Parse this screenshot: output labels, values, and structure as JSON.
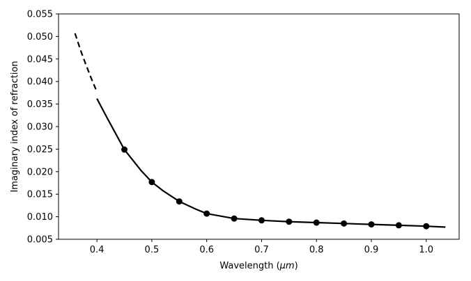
{
  "chart_data": {
    "type": "line",
    "title": "",
    "xlabel": "Wavelength (",
    "xlabel_unit": "μm",
    "xlabel_close": ")",
    "ylabel": "Imaginary index of refraction",
    "xlim": [
      0.33,
      1.06
    ],
    "ylim": [
      0.005,
      0.055
    ],
    "grid": false,
    "x_ticks": [
      0.4,
      0.5,
      0.6,
      0.7,
      0.8,
      0.9,
      1.0
    ],
    "x_tick_labels": [
      "0.4",
      "0.5",
      "0.6",
      "0.7",
      "0.8",
      "0.9",
      "1.0"
    ],
    "y_ticks": [
      0.005,
      0.01,
      0.015,
      0.02,
      0.025,
      0.03,
      0.035,
      0.04,
      0.045,
      0.05,
      0.055
    ],
    "y_tick_labels": [
      "0.005",
      "0.010",
      "0.015",
      "0.020",
      "0.025",
      "0.030",
      "0.035",
      "0.040",
      "0.045",
      "0.050",
      "0.055"
    ],
    "color": "#000000",
    "series": [
      {
        "style": "dashed",
        "x": [
          0.36,
          0.37,
          0.38,
          0.39,
          0.4
        ],
        "y": [
          0.0507,
          0.047,
          0.0437,
          0.0406,
          0.0377
        ]
      },
      {
        "style": "solid",
        "x": [
          0.4,
          0.42,
          0.45,
          0.48,
          0.5,
          0.52,
          0.55,
          0.58,
          0.6,
          0.65,
          0.7,
          0.75,
          0.8,
          0.85,
          0.9,
          0.95,
          1.0,
          1.035
        ],
        "y": [
          0.0362,
          0.0316,
          0.0249,
          0.0203,
          0.0177,
          0.0158,
          0.0134,
          0.0117,
          0.0107,
          0.0096,
          0.0092,
          0.0089,
          0.0087,
          0.0085,
          0.0083,
          0.0081,
          0.0079,
          0.0077
        ]
      },
      {
        "style": "markers",
        "x": [
          0.45,
          0.5,
          0.55,
          0.6,
          0.65,
          0.7,
          0.75,
          0.8,
          0.85,
          0.9,
          0.95,
          1.0
        ],
        "y": [
          0.0249,
          0.0177,
          0.0134,
          0.0107,
          0.0096,
          0.0092,
          0.0089,
          0.0087,
          0.0085,
          0.0083,
          0.0081,
          0.0079
        ]
      }
    ]
  }
}
